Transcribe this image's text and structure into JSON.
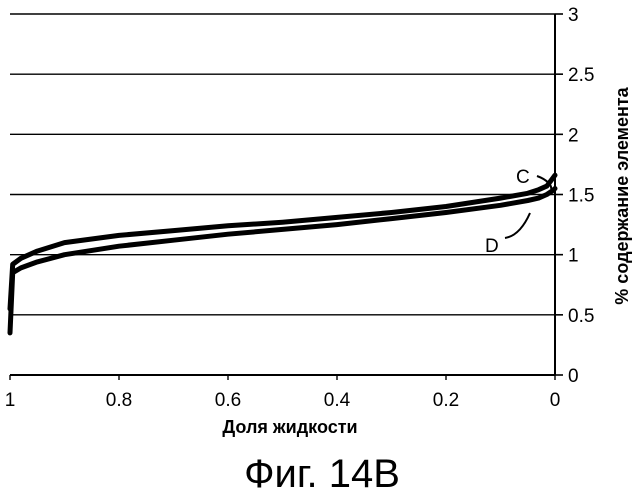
{
  "caption": "Фиг. 14B",
  "chart_data": {
    "type": "line",
    "title": "",
    "xlabel": "Доля жидкости",
    "ylabel": "% содержание элемента",
    "xlim": [
      1,
      0
    ],
    "x_reversed": true,
    "ylim": [
      0,
      3
    ],
    "x_ticks": [
      "1",
      "0.8",
      "0.6",
      "0.4",
      "0.2",
      "0"
    ],
    "y_ticks": [
      "0",
      "0.5",
      "1",
      "1.5",
      "2",
      "2.5",
      "3"
    ],
    "y_axis_side": "right",
    "grid": "horizontal",
    "legend": "none",
    "series": [
      {
        "name": "C",
        "color": "#000000",
        "x": [
          1.0,
          0.995,
          0.98,
          0.95,
          0.9,
          0.8,
          0.7,
          0.6,
          0.5,
          0.4,
          0.3,
          0.2,
          0.1,
          0.05,
          0.03,
          0.015,
          0.005,
          0.0
        ],
        "y": [
          0.55,
          0.92,
          0.97,
          1.03,
          1.1,
          1.16,
          1.2,
          1.24,
          1.27,
          1.31,
          1.35,
          1.4,
          1.47,
          1.51,
          1.54,
          1.57,
          1.63,
          1.66
        ]
      },
      {
        "name": "D",
        "color": "#000000",
        "x": [
          1.0,
          0.995,
          0.98,
          0.95,
          0.9,
          0.8,
          0.7,
          0.6,
          0.5,
          0.4,
          0.3,
          0.2,
          0.1,
          0.05,
          0.03,
          0.015,
          0.005,
          0.0
        ],
        "y": [
          0.35,
          0.85,
          0.89,
          0.94,
          1.0,
          1.07,
          1.12,
          1.17,
          1.21,
          1.25,
          1.3,
          1.35,
          1.41,
          1.45,
          1.47,
          1.5,
          1.53,
          1.55
        ]
      }
    ]
  }
}
